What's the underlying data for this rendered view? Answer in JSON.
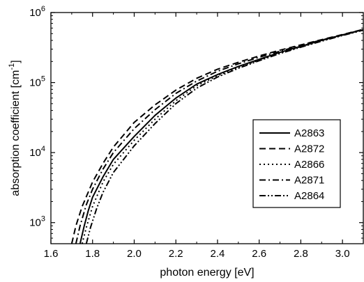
{
  "chart_data": {
    "type": "line",
    "xlabel": "photon energy [eV]",
    "ylabel": "absorption coefficient [cm",
    "ylabel_sup": "-1",
    "ylabel_end": "]",
    "xlim": [
      1.6,
      3.1
    ],
    "ylim": [
      500,
      1000000
    ],
    "yscale": "log",
    "grid": false,
    "legend_position": "lower-right",
    "x_ticks": [
      1.6,
      1.8,
      2.0,
      2.2,
      2.4,
      2.6,
      2.8,
      3.0
    ],
    "x_tick_labels": [
      "1.6",
      "1.8",
      "2.0",
      "2.2",
      "2.4",
      "2.6",
      "2.8",
      "3.0"
    ],
    "y_ticks": [
      {
        "value": 1000,
        "base": "10",
        "exp": "3"
      },
      {
        "value": 10000,
        "base": "10",
        "exp": "4"
      },
      {
        "value": 100000,
        "base": "10",
        "exp": "5"
      },
      {
        "value": 1000000,
        "base": "10",
        "exp": "6"
      }
    ],
    "series": [
      {
        "name": "A2863",
        "dash": "solid",
        "x": [
          1.74,
          1.76,
          1.78,
          1.8,
          1.85,
          1.9,
          2.0,
          2.1,
          2.2,
          2.3,
          2.4,
          2.5,
          2.6,
          2.7,
          2.8,
          2.9,
          3.0,
          3.1
        ],
        "y": [
          500,
          900,
          1500,
          2300,
          4500,
          8000,
          17000,
          34000,
          60000,
          95000,
          130000,
          170000,
          215000,
          270000,
          330000,
          400000,
          480000,
          570000
        ]
      },
      {
        "name": "A2872",
        "dash": "dash",
        "x": [
          1.7,
          1.72,
          1.75,
          1.8,
          1.85,
          1.9,
          2.0,
          2.1,
          2.2,
          2.3,
          2.4,
          2.5,
          2.6,
          2.7,
          2.8,
          2.9,
          3.0,
          3.1
        ],
        "y": [
          500,
          900,
          1700,
          3800,
          7000,
          12000,
          27000,
          48000,
          78000,
          115000,
          155000,
          195000,
          240000,
          290000,
          345000,
          410000,
          485000,
          575000
        ]
      },
      {
        "name": "A2866",
        "dash": "dot",
        "x": [
          1.75,
          1.77,
          1.8,
          1.85,
          1.9,
          2.0,
          2.1,
          2.2,
          2.3,
          2.4,
          2.5,
          2.6,
          2.7,
          2.8,
          2.9,
          3.0,
          3.1
        ],
        "y": [
          500,
          850,
          1700,
          3800,
          6800,
          15000,
          30000,
          55000,
          90000,
          125000,
          165000,
          210000,
          265000,
          325000,
          395000,
          475000,
          565000
        ]
      },
      {
        "name": "A2871",
        "dash": "dashdot",
        "x": [
          1.72,
          1.74,
          1.77,
          1.8,
          1.85,
          1.9,
          2.0,
          2.1,
          2.2,
          2.3,
          2.4,
          2.5,
          2.6,
          2.7,
          2.8,
          2.9,
          3.0,
          3.1
        ],
        "y": [
          500,
          900,
          1800,
          3000,
          5800,
          10000,
          22000,
          41000,
          70000,
          105000,
          145000,
          185000,
          230000,
          280000,
          340000,
          405000,
          480000,
          570000
        ]
      },
      {
        "name": "A2864",
        "dash": "dashdotdot",
        "x": [
          1.77,
          1.79,
          1.82,
          1.85,
          1.9,
          2.0,
          2.1,
          2.2,
          2.3,
          2.4,
          2.5,
          2.6,
          2.7,
          2.8,
          2.9,
          3.0,
          3.1
        ],
        "y": [
          500,
          850,
          1600,
          2700,
          5200,
          12500,
          26000,
          50000,
          83000,
          120000,
          160000,
          205000,
          260000,
          320000,
          390000,
          470000,
          560000
        ]
      }
    ]
  }
}
